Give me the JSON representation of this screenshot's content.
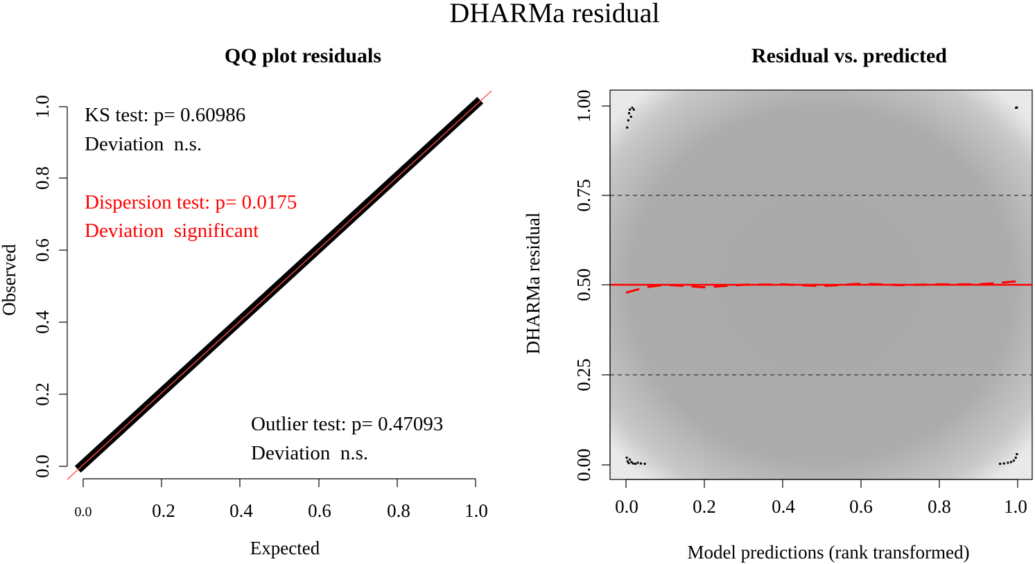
{
  "figure": {
    "title": "DHARMa residual"
  },
  "qq_panel": {
    "title": "QQ plot residuals",
    "xlabel": "Expected",
    "ylabel": "Observed",
    "x_ticks": [
      "0.0",
      "0.2",
      "0.4",
      "0.6",
      "0.8",
      "1.0"
    ],
    "y_ticks": [
      "0.0",
      "0.2",
      "0.4",
      "0.6",
      "0.8",
      "1.0"
    ],
    "ks_test": "KS test: p= 0.60986",
    "ks_deviation": "Deviation  n.s.",
    "dispersion_test": "Dispersion test: p= 0.0175",
    "dispersion_deviation": "Deviation  significant",
    "outlier_test": "Outlier test: p= 0.47093",
    "outlier_deviation": "Deviation  n.s.",
    "point_color": "#000000",
    "reference_line_color": "#ff4c4c",
    "significant_text_color": "#ff0000"
  },
  "resid_panel": {
    "title": "Residual vs. predicted",
    "xlabel": "Model predictions (rank transformed)",
    "ylabel": "DHARMa residual",
    "x_ticks": [
      "0.0",
      "0.2",
      "0.4",
      "0.6",
      "0.8",
      "1.0"
    ],
    "y_ticks": [
      "0.00",
      "0.25",
      "0.50",
      "0.75",
      "1.00"
    ],
    "reference_color": "#ff0000",
    "background": "grey density shading"
  },
  "chart_data": [
    {
      "type": "scatter",
      "title": "QQ plot residuals",
      "xlabel": "Expected",
      "ylabel": "Observed",
      "xlim": [
        0,
        1
      ],
      "ylim": [
        0,
        1
      ],
      "series": [
        {
          "values": [
            [
              0.0,
              0.0
            ],
            [
              0.2,
              0.2
            ],
            [
              0.4,
              0.4
            ],
            [
              0.6,
              0.6
            ],
            [
              0.8,
              0.8
            ],
            [
              1.0,
              1.0
            ]
          ]
        }
      ],
      "reference_line": {
        "slope": 1,
        "intercept": 0
      },
      "annotations": [
        "KS test: p= 0.60986",
        "Deviation  n.s.",
        "Dispersion test: p= 0.0175",
        "Deviation  significant",
        "Outlier test: p= 0.47093",
        "Deviation  n.s."
      ]
    },
    {
      "type": "scatter",
      "title": "Residual vs. predicted",
      "xlabel": "Model predictions (rank transformed)",
      "ylabel": "DHARMa residual",
      "xlim": [
        0,
        1
      ],
      "ylim": [
        0,
        1
      ],
      "grid": false,
      "hlines": [
        0.25,
        0.5,
        0.75
      ],
      "outliers": [
        [
          0.003,
          0.94
        ],
        [
          0.006,
          0.96
        ],
        [
          0.008,
          0.98
        ],
        [
          0.01,
          0.99
        ],
        [
          0.013,
          0.97
        ],
        [
          0.016,
          0.995
        ],
        [
          0.02,
          0.99
        ],
        [
          0.996,
          0.995
        ],
        [
          0.998,
          0.996
        ],
        [
          0.002,
          0.02
        ],
        [
          0.004,
          0.01
        ],
        [
          0.007,
          0.005
        ],
        [
          0.01,
          0.015
        ],
        [
          0.014,
          0.008
        ],
        [
          0.018,
          0.004
        ],
        [
          0.024,
          0.003
        ],
        [
          0.03,
          0.006
        ],
        [
          0.038,
          0.004
        ],
        [
          0.048,
          0.003
        ],
        [
          0.955,
          0.003
        ],
        [
          0.965,
          0.004
        ],
        [
          0.975,
          0.006
        ],
        [
          0.983,
          0.008
        ],
        [
          0.99,
          0.012
        ],
        [
          0.995,
          0.02
        ],
        [
          0.998,
          0.03
        ]
      ],
      "quantile_line": {
        "x": [
          0.0,
          0.05,
          0.1,
          0.2,
          0.3,
          0.4,
          0.5,
          0.6,
          0.7,
          0.8,
          0.9,
          0.95,
          1.0
        ],
        "y": [
          0.48,
          0.495,
          0.502,
          0.495,
          0.502,
          0.503,
          0.498,
          0.505,
          0.501,
          0.503,
          0.503,
          0.507,
          0.512
        ]
      }
    }
  ]
}
